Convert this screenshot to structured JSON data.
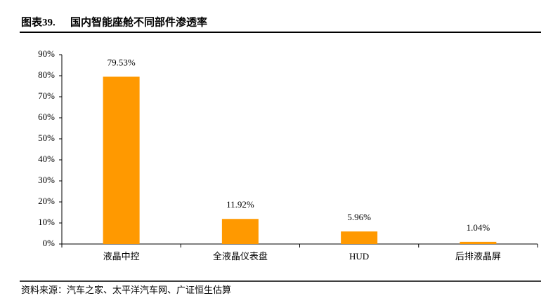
{
  "chart_data": {
    "type": "bar",
    "figure_label": "图表39.",
    "title": "国内智能座舱不同部件渗透率",
    "source": "资料来源：汽车之家、太平洋汽车网、广证恒生估算",
    "categories": [
      "液晶中控",
      "全液晶仪表盘",
      "HUD",
      "后排液晶屏"
    ],
    "values": [
      79.53,
      11.92,
      5.96,
      1.04
    ],
    "value_labels": [
      "79.53%",
      "11.92%",
      "5.96%",
      "1.04%"
    ],
    "color": "#ff9900",
    "ylim": [
      0,
      90
    ],
    "yticks": [
      {
        "value": 0,
        "label": "0%"
      },
      {
        "value": 10,
        "label": "10%"
      },
      {
        "value": 20,
        "label": "20%"
      },
      {
        "value": 30,
        "label": "30%"
      },
      {
        "value": 40,
        "label": "40%"
      },
      {
        "value": 50,
        "label": "50%"
      },
      {
        "value": 60,
        "label": "60%"
      },
      {
        "value": 70,
        "label": "70%"
      },
      {
        "value": 80,
        "label": "80%"
      },
      {
        "value": 90,
        "label": "90%"
      }
    ],
    "grid": false
  }
}
